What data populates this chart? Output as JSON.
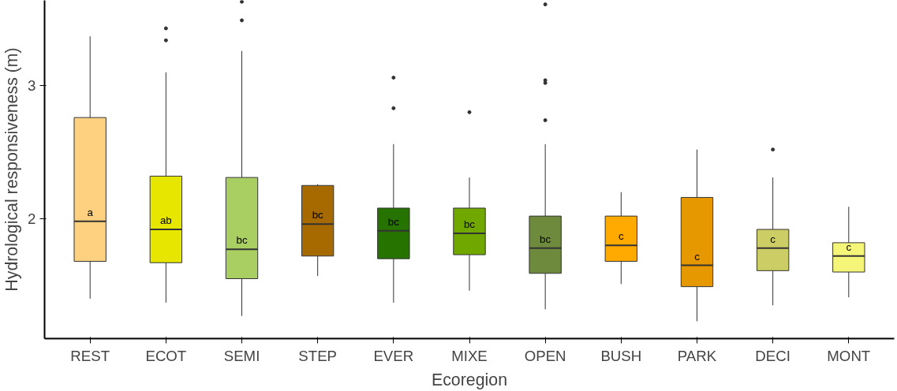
{
  "chart_data": {
    "type": "box",
    "xlabel": "Ecoregion",
    "ylabel": "Hydrological responsiveness (m)",
    "categories": [
      "REST",
      "ECOT",
      "SEMI",
      "STEP",
      "EVER",
      "MIXE",
      "OPEN",
      "BUSH",
      "PARK",
      "DECI",
      "MONT"
    ],
    "colors": [
      "#fdd17f",
      "#e6e600",
      "#a9cf63",
      "#a66a00",
      "#267300",
      "#70a800",
      "#6e8b3d",
      "#ffaa00",
      "#e69800",
      "#cdcd66",
      "#f5f57a"
    ],
    "boxes": [
      {
        "low": 1.4,
        "q1": 1.68,
        "median": 1.98,
        "q3": 2.76,
        "high": 3.37
      },
      {
        "low": 1.37,
        "q1": 1.67,
        "median": 1.92,
        "q3": 2.32,
        "high": 3.1,
        "outliers": [
          3.34,
          3.43
        ]
      },
      {
        "low": 1.27,
        "q1": 1.55,
        "median": 1.77,
        "q3": 2.31,
        "high": 3.26,
        "outliers": [
          3.49,
          3.63
        ]
      },
      {
        "low": 1.57,
        "q1": 1.72,
        "median": 1.96,
        "q3": 2.25,
        "high": 2.26
      },
      {
        "low": 1.37,
        "q1": 1.7,
        "median": 1.91,
        "q3": 2.08,
        "high": 2.56,
        "outliers": [
          2.83,
          3.06
        ]
      },
      {
        "low": 1.46,
        "q1": 1.73,
        "median": 1.89,
        "q3": 2.08,
        "high": 2.31,
        "outliers": [
          2.8
        ]
      },
      {
        "low": 1.32,
        "q1": 1.59,
        "median": 1.78,
        "q3": 2.02,
        "high": 2.56,
        "outliers": [
          2.74,
          3.02,
          3.04,
          3.61
        ]
      },
      {
        "low": 1.51,
        "q1": 1.68,
        "median": 1.8,
        "q3": 2.02,
        "high": 2.2
      },
      {
        "low": 1.23,
        "q1": 1.49,
        "median": 1.65,
        "q3": 2.16,
        "high": 2.52
      },
      {
        "low": 1.35,
        "q1": 1.61,
        "median": 1.78,
        "q3": 1.92,
        "high": 2.31,
        "outliers": [
          2.52
        ]
      },
      {
        "low": 1.41,
        "q1": 1.6,
        "median": 1.72,
        "q3": 1.82,
        "high": 2.09
      }
    ],
    "annotations": [
      "a",
      "ab",
      "bc",
      "bc",
      "bc",
      "bc",
      "bc",
      "c",
      "c",
      "c",
      "c"
    ],
    "ylim": [
      1.1,
      3.64
    ],
    "yticks": [
      2,
      3
    ],
    "grid": false
  }
}
